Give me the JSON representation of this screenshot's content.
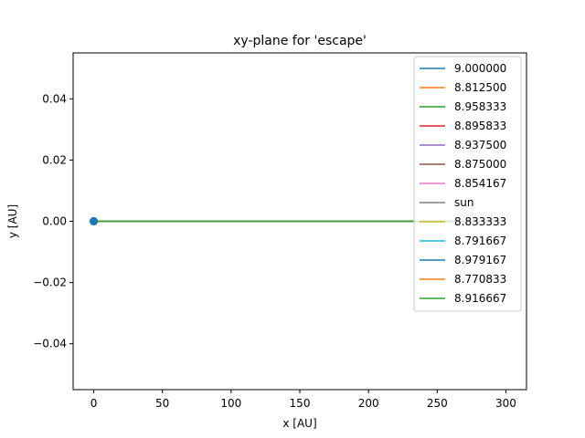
{
  "chart_data": {
    "type": "line",
    "title": "xy-plane for 'escape'",
    "xlabel": "x [AU]",
    "ylabel": "y [AU]",
    "xlim": [
      -15,
      315
    ],
    "ylim": [
      -0.055,
      0.055
    ],
    "xticks": [
      0,
      50,
      100,
      150,
      200,
      250,
      300
    ],
    "xtick_labels": [
      "0",
      "50",
      "100",
      "150",
      "200",
      "250",
      "300"
    ],
    "yticks": [
      -0.04,
      -0.02,
      0.0,
      0.02,
      0.04
    ],
    "ytick_labels": [
      "−0.04",
      "−0.02",
      "0.00",
      "0.02",
      "0.04"
    ],
    "grid": false,
    "legend_position": "top-right",
    "series": [
      {
        "name": "9.000000",
        "color": "#1f77b4",
        "x": [
          0,
          300
        ],
        "y": [
          0,
          0
        ]
      },
      {
        "name": "8.812500",
        "color": "#ff7f0e",
        "x": [
          0,
          300
        ],
        "y": [
          0,
          0
        ]
      },
      {
        "name": "8.958333",
        "color": "#2ca02c",
        "x": [
          0,
          300
        ],
        "y": [
          0,
          0
        ]
      },
      {
        "name": "8.895833",
        "color": "#d62728",
        "x": [
          0,
          300
        ],
        "y": [
          0,
          0
        ]
      },
      {
        "name": "8.937500",
        "color": "#9467bd",
        "x": [
          0,
          300
        ],
        "y": [
          0,
          0
        ]
      },
      {
        "name": "8.875000",
        "color": "#8c564b",
        "x": [
          0,
          300
        ],
        "y": [
          0,
          0
        ]
      },
      {
        "name": "8.854167",
        "color": "#e377c2",
        "x": [
          0,
          300
        ],
        "y": [
          0,
          0
        ]
      },
      {
        "name": "sun",
        "color": "#7f7f7f",
        "x": [
          0,
          0
        ],
        "y": [
          0,
          0
        ]
      },
      {
        "name": "8.833333",
        "color": "#bcbd22",
        "x": [
          0,
          300
        ],
        "y": [
          0,
          0
        ]
      },
      {
        "name": "8.791667",
        "color": "#17becf",
        "x": [
          0,
          300
        ],
        "y": [
          0,
          0
        ]
      },
      {
        "name": "8.979167",
        "color": "#1f77b4",
        "x": [
          0,
          300
        ],
        "y": [
          0,
          0
        ]
      },
      {
        "name": "8.770833",
        "color": "#ff7f0e",
        "x": [
          0,
          300
        ],
        "y": [
          0,
          0
        ]
      },
      {
        "name": "8.916667",
        "color": "#2ca02c",
        "x": [
          0,
          300
        ],
        "y": [
          0,
          0
        ]
      }
    ],
    "start_markers": {
      "x": 0,
      "y": 0,
      "color": "#1f77b4"
    }
  }
}
